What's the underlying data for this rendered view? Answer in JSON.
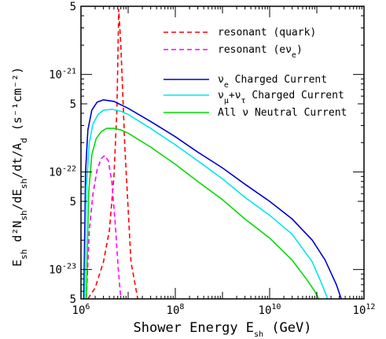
{
  "chart_data": {
    "type": "line",
    "xlabel": "Shower Energy E_sh (GeV)",
    "ylabel": "E_sh d²N_sh/dE_sh/dt/A_d (s⁻¹cm⁻²)",
    "x_scale": "log",
    "y_scale": "log",
    "xlim": [
      1000000.0,
      1000000000000.0
    ],
    "ylim": [
      5e-24,
      5e-21
    ],
    "x_ticks": [
      {
        "value": 1000000.0,
        "label": "10^6"
      },
      {
        "value": 100000000.0,
        "label": "10^8"
      },
      {
        "value": 10000000000.0,
        "label": "10^10"
      },
      {
        "value": 1000000000000.0,
        "label": "10^12"
      }
    ],
    "y_ticks": [
      {
        "value": 5e-24,
        "label": "5"
      },
      {
        "value": 1e-23,
        "label": "10^-23"
      },
      {
        "value": 5e-23,
        "label": "5"
      },
      {
        "value": 1e-22,
        "label": "10^-22"
      },
      {
        "value": 5e-22,
        "label": "5"
      },
      {
        "value": 1e-21,
        "label": "10^-21"
      },
      {
        "value": 5e-21,
        "label": "5"
      }
    ],
    "legend_position": "top-right",
    "series": [
      {
        "name": "resonant (quark)",
        "color": "#ff0000",
        "dash": "dashed",
        "x": [
          1400000.0,
          2000000.0,
          3000000.0,
          4000000.0,
          5000000.0,
          5800000.0,
          6300000.0,
          7000000.0,
          8500000.0,
          11500000.0,
          16000000.0
        ],
        "y": [
          5e-24,
          6.5e-24,
          1.2e-23,
          2.5e-23,
          9e-23,
          4.5e-22,
          4.7e-21,
          2e-21,
          1.8e-22,
          1.2e-23,
          5e-24
        ]
      },
      {
        "name": "resonant (eν_e)",
        "color": "#ff00ff",
        "dash": "dashed",
        "x": [
          1300000.0,
          1500000.0,
          1800000.0,
          2200000.0,
          2700000.0,
          3200000.0,
          3800000.0,
          4500000.0,
          5300000.0,
          6200000.0,
          7000000.0
        ],
        "y": [
          5e-24,
          2.5e-23,
          6e-23,
          1.05e-22,
          1.38e-22,
          1.48e-22,
          1.3e-22,
          8e-23,
          3e-23,
          1e-23,
          5e-24
        ]
      },
      {
        "name": "ν_e Charged Current",
        "color": "#0000cc",
        "dash": "solid",
        "x": [
          1150000.0,
          1250000.0,
          1400000.0,
          1700000.0,
          2200000.0,
          3000000.0,
          5000000.0,
          10000000.0,
          30000000.0,
          100000000.0,
          300000000.0,
          1000000000.0,
          3000000000.0,
          10000000000.0,
          30000000000.0,
          80000000000.0,
          150000000000.0,
          260000000000.0,
          330000000000.0
        ],
        "y": [
          5e-24,
          1e-22,
          2.7e-22,
          4.3e-22,
          5.2e-22,
          5.5e-22,
          5.3e-22,
          4.5e-22,
          3.3e-22,
          2.3e-22,
          1.6e-22,
          1.1e-22,
          7.5e-23,
          5e-23,
          3.3e-23,
          2e-23,
          1.25e-23,
          7e-24,
          5e-24
        ]
      },
      {
        "name": "ν_μ+ν_τ Charged Current",
        "color": "#00e5ee",
        "dash": "solid",
        "x": [
          1200000.0,
          1300000.0,
          1500000.0,
          1800000.0,
          2300000.0,
          3000000.0,
          4500000.0,
          7000000.0,
          10000000.0,
          30000000.0,
          100000000.0,
          300000000.0,
          1000000000.0,
          3000000000.0,
          10000000000.0,
          30000000000.0,
          80000000000.0,
          130000000000.0,
          170000000000.0
        ],
        "y": [
          5e-24,
          7e-23,
          2e-22,
          3.1e-22,
          3.9e-22,
          4.3e-22,
          4.4e-22,
          4.2e-22,
          3.9e-22,
          2.8e-22,
          1.9e-22,
          1.3e-22,
          8.5e-23,
          5.5e-23,
          3.6e-23,
          2.3e-23,
          1.2e-23,
          7e-24,
          5e-24
        ]
      },
      {
        "name": "All ν Neutral Current",
        "color": "#00dd00",
        "dash": "solid",
        "x": [
          1300000.0,
          1450000.0,
          1700000.0,
          2100000.0,
          2700000.0,
          3500000.0,
          5000000.0,
          7000000.0,
          10000000.0,
          30000000.0,
          100000000.0,
          300000000.0,
          1000000000.0,
          3000000000.0,
          10000000000.0,
          30000000000.0,
          60000000000.0,
          90000000000.0,
          110000000000.0
        ],
        "y": [
          5e-24,
          6e-23,
          1.5e-22,
          2.2e-22,
          2.6e-22,
          2.8e-22,
          2.8e-22,
          2.7e-22,
          2.5e-22,
          1.8e-22,
          1.2e-22,
          8e-23,
          5.2e-23,
          3.3e-23,
          2.1e-23,
          1.25e-23,
          8e-24,
          6e-24,
          5e-24
        ]
      }
    ]
  }
}
